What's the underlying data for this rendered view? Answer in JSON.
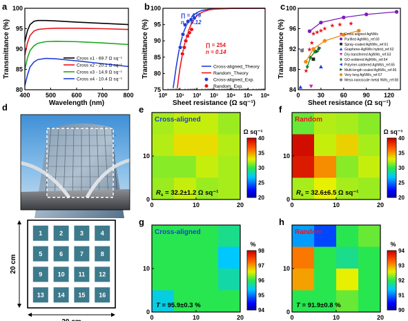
{
  "panel_letters": [
    "a",
    "b",
    "c",
    "d",
    "e",
    "f",
    "g",
    "h"
  ],
  "chart_data": [
    {
      "id": "a",
      "type": "line",
      "xlabel": "Wavelength (nm)",
      "ylabel": "Transmittance (%)",
      "xlim": [
        400,
        800
      ],
      "ylim": [
        80,
        100
      ],
      "xticks": [
        400,
        500,
        600,
        700,
        800
      ],
      "yticks": [
        80,
        85,
        90,
        95,
        100
      ],
      "legend_position": "lower-right",
      "series": [
        {
          "name": "Cross x1 - 69.7 Ω sq⁻¹",
          "color": "#000000",
          "x": [
            400,
            410,
            420,
            435,
            450,
            480,
            520,
            600,
            700,
            800
          ],
          "y": [
            91.8,
            94.5,
            96.0,
            96.8,
            97.0,
            97.0,
            96.9,
            96.6,
            96.3,
            96.0
          ]
        },
        {
          "name": "Cross x2 - 20.1 Ω sq⁻¹",
          "color": "#e8141b",
          "x": [
            400,
            410,
            420,
            435,
            450,
            480,
            520,
            600,
            700,
            800
          ],
          "y": [
            88.5,
            91.5,
            93.3,
            94.4,
            94.8,
            95.0,
            95.1,
            95.1,
            95.0,
            94.8
          ]
        },
        {
          "name": "Cross x3 - 14.9 Ω sq⁻¹",
          "color": "#1aa81a",
          "x": [
            400,
            410,
            420,
            435,
            450,
            480,
            520,
            600,
            700,
            800
          ],
          "y": [
            85.0,
            87.8,
            89.6,
            90.8,
            91.4,
            91.8,
            91.9,
            91.8,
            91.5,
            91.1
          ]
        },
        {
          "name": "Cross x4 - 10.4 Ω sq⁻¹",
          "color": "#1f3fd6",
          "x": [
            400,
            410,
            420,
            435,
            450,
            480,
            520,
            600,
            700,
            800
          ],
          "y": [
            81.0,
            83.6,
            85.6,
            86.8,
            87.4,
            87.7,
            87.6,
            87.1,
            86.4,
            85.7
          ]
        }
      ]
    },
    {
      "id": "b",
      "type": "scatter",
      "xlabel": "Sheet resistance (Ω sq⁻¹)",
      "ylabel": "Transmittance (%)",
      "xscale": "log",
      "xlim": [
        1,
        1000000
      ],
      "ylim": [
        75,
        100
      ],
      "xticks": [
        1,
        10,
        100,
        1000,
        10000,
        100000,
        1000000
      ],
      "xtick_labels": [
        "10⁰",
        "10¹",
        "10²",
        "10³",
        "10⁴",
        "10⁵",
        "10⁶"
      ],
      "yticks": [
        75,
        80,
        85,
        90,
        95,
        100
      ],
      "legend_position": "lower-right",
      "series": [
        {
          "name": "Cross-aligned_Theory",
          "kind": "line",
          "color": "#1f3fd6",
          "x": [
            4,
            5,
            6,
            8,
            10,
            15,
            20,
            30,
            50,
            100,
            200,
            500,
            1000,
            10000,
            1000000
          ],
          "y": [
            75.5,
            79.0,
            82.0,
            85.9,
            88.5,
            92.1,
            93.8,
            95.7,
            97.4,
            98.7,
            99.35,
            99.7,
            99.85,
            99.98,
            100
          ]
        },
        {
          "name": "Random_Theory",
          "kind": "line",
          "color": "#e8141b",
          "x": [
            7,
            8,
            10,
            15,
            20,
            30,
            50,
            100,
            200,
            500,
            1000,
            10000,
            1000000
          ],
          "y": [
            75.5,
            78.0,
            81.6,
            86.8,
            89.6,
            92.8,
            95.6,
            97.7,
            98.8,
            99.5,
            99.75,
            99.97,
            100
          ]
        },
        {
          "name": "Cross-aligned_Exp.",
          "kind": "point",
          "color": "#1f3fd6",
          "x": [
            10.4,
            14.9,
            20.1,
            30,
            45,
            69.7
          ],
          "y": [
            88.0,
            92.0,
            94.9,
            96.0,
            96.5,
            97.0
          ]
        },
        {
          "name": "Random_Exp.",
          "kind": "point",
          "color": "#e8141b",
          "x": [
            14,
            18,
            22,
            28,
            36,
            48
          ],
          "y": [
            86.0,
            88.0,
            90.0,
            91.5,
            92.5,
            93.5
          ]
        }
      ],
      "annotations": [
        {
          "text": "∏ = 479",
          "color": "#1f3fd6"
        },
        {
          "text": "n = 0.12",
          "color": "#1f3fd6"
        },
        {
          "text": "∏ = 254",
          "color": "#e8141b"
        },
        {
          "text": "n = 0.14",
          "color": "#e8141b"
        }
      ]
    },
    {
      "id": "c",
      "type": "scatter",
      "xlabel": "Sheet resistance (Ω sq⁻¹)",
      "ylabel": "Transmittance (%)",
      "xlim": [
        0,
        135
      ],
      "ylim": [
        84,
        100
      ],
      "xticks": [
        0,
        30,
        60,
        90,
        120
      ],
      "yticks": [
        84,
        88,
        92,
        96,
        100
      ],
      "legend_position": "lower-right",
      "series": [
        {
          "name": "Cross-aligned AgNWs",
          "marker": "star",
          "color": "#e8141b",
          "x": [
            10.4,
            14.9,
            18,
            20.1,
            25,
            30,
            35,
            45,
            55,
            69.7
          ],
          "y": [
            87.7,
            91.9,
            93.2,
            95.0,
            95.3,
            95.6,
            96.0,
            96.6,
            96.8,
            97.0
          ]
        },
        {
          "name": "Purified AgNWs_ref.60",
          "marker": "circle",
          "line": true,
          "color": "#7a1fb8",
          "x": [
            15,
            30,
            60,
            90,
            130
          ],
          "y": [
            95.5,
            97.2,
            98.2,
            98.8,
            99.3
          ]
        },
        {
          "name": "Spray-coated AgNWs_ref.61",
          "marker": "square",
          "color": "#222222",
          "x": [
            20
          ],
          "y": [
            90.0
          ]
        },
        {
          "name": "Graphene-AgNWs hybrid_ref.62",
          "marker": "triangle",
          "color": "#1f3fd6",
          "x": [
            3,
            30
          ],
          "y": [
            84.5,
            88.5
          ]
        },
        {
          "name": "Dry-transferred AgNWs_ref.63",
          "marker": "triangle-down",
          "color": "#d61fb0",
          "x": [
            17
          ],
          "y": [
            84.7
          ]
        },
        {
          "name": "GO-soldered AgNWs_ref.64",
          "marker": "diamond",
          "line": true,
          "color": "#1a8a1a",
          "x": [
            12,
            16,
            22,
            27
          ],
          "y": [
            88.5,
            90.3,
            91.5,
            92.0
          ]
        },
        {
          "name": "Polymer-soldered AgNWs_ref.65",
          "marker": "triangle-left",
          "color": "#1f3fd6",
          "x": [
            5
          ],
          "y": [
            91.8
          ]
        },
        {
          "name": "Multi-length scaled AgNWs_ref.66",
          "marker": "triangle-right",
          "color": "#1a5a3a",
          "x": [
            25,
            28
          ],
          "y": [
            91.5,
            92.2
          ]
        },
        {
          "name": "Very long AgNWs_ref.67",
          "marker": "hexagon",
          "line": true,
          "color": "#f08a12",
          "x": [
            10,
            20,
            35,
            60,
            80
          ],
          "y": [
            89.5,
            92.0,
            93.6,
            94.8,
            95.6
          ]
        },
        {
          "name": "Meso-nanoscale metal NWs_ref.68",
          "marker": "circle",
          "color": "#7a7a7a",
          "x": [
            5
          ],
          "y": [
            91.7
          ]
        }
      ]
    },
    {
      "id": "e",
      "type": "heatmap",
      "label": "Cross-aligned",
      "label_color": "#1f3fd6",
      "xlim": [
        0,
        20
      ],
      "ylim": [
        0,
        20
      ],
      "xticks": [
        0,
        10,
        20
      ],
      "yticks": [
        0,
        10
      ],
      "colorbar": {
        "unit": "Ω sq⁻¹",
        "min": 20,
        "max": 40,
        "ticks": [
          20,
          25,
          30,
          35,
          40
        ]
      },
      "grid_rows_top_to_bottom": [
        [
          32.0,
          32.5,
          32.5,
          31.8
        ],
        [
          32.2,
          33.5,
          33.5,
          32.2
        ],
        [
          31.5,
          31.5,
          32.5,
          32.0
        ],
        [
          31.8,
          32.5,
          31.8,
          32.0
        ]
      ],
      "caption": {
        "prefix": "R",
        "sub": "s",
        "text": " = 32.2±1.2 Ω sq⁻¹"
      }
    },
    {
      "id": "f",
      "type": "heatmap",
      "label": "Random",
      "label_color": "#e8141b",
      "xlim": [
        0,
        20
      ],
      "ylim": [
        0,
        20
      ],
      "xticks": [
        0,
        10,
        20
      ],
      "yticks": [
        0,
        10
      ],
      "colorbar": {
        "unit": "Ω sq⁻¹",
        "min": 20,
        "max": 40,
        "ticks": [
          20,
          25,
          30,
          35,
          40
        ]
      },
      "grid_rows_top_to_bottom": [
        [
          31.0,
          32.2,
          32.0,
          31.5
        ],
        [
          39.5,
          32.5,
          33.8,
          32.0
        ],
        [
          39.0,
          35.5,
          31.5,
          32.5
        ],
        [
          32.0,
          33.0,
          32.0,
          31.8
        ]
      ],
      "caption": {
        "prefix": "R",
        "sub": "s",
        "text": " = 32.6±6.5 Ω sq⁻¹"
      }
    },
    {
      "id": "g",
      "type": "heatmap",
      "label": "Cross-aligned",
      "label_color": "#1f3fd6",
      "xlim": [
        0,
        20
      ],
      "ylim": [
        0,
        20
      ],
      "xticks": [
        0,
        10,
        20
      ],
      "yticks": [
        0,
        10
      ],
      "colorbar": {
        "unit": "%",
        "min": 94,
        "max": 98,
        "ticks": [
          94,
          95,
          96,
          97,
          98
        ]
      },
      "grid_rows_top_to_bottom": [
        [
          96.0,
          96.0,
          96.0,
          95.8
        ],
        [
          96.0,
          96.0,
          96.0,
          95.4
        ],
        [
          96.0,
          96.0,
          96.0,
          95.7
        ],
        [
          95.5,
          96.0,
          96.0,
          96.0
        ]
      ],
      "caption": {
        "prefix": "T",
        "sub": "",
        "text": " = 95.9±0.3 %"
      }
    },
    {
      "id": "h",
      "type": "heatmap",
      "label": "Random",
      "label_color": "#e8141b",
      "xlim": [
        0,
        20
      ],
      "ylim": [
        0,
        20
      ],
      "xticks": [
        0,
        10,
        20
      ],
      "yticks": [
        0,
        10
      ],
      "colorbar": {
        "unit": "%",
        "min": 90,
        "max": 94,
        "ticks": [
          90,
          91,
          92,
          93,
          94
        ]
      },
      "grid_rows_top_to_bottom": [
        [
          91.2,
          90.8,
          92.0,
          92.2
        ],
        [
          93.2,
          92.0,
          91.8,
          92.0
        ],
        [
          93.0,
          92.0,
          92.6,
          92.0
        ],
        [
          92.0,
          92.0,
          92.2,
          92.0
        ]
      ],
      "caption": {
        "prefix": "T",
        "sub": "",
        "text": " = 91.9±0.8 %"
      }
    }
  ],
  "panel_d": {
    "photo_alt": "Photo of a building viewed through a transparent patterned film",
    "grid_numbers": [
      "1",
      "2",
      "3",
      "4",
      "5",
      "6",
      "7",
      "8",
      "9",
      "10",
      "11",
      "12",
      "13",
      "14",
      "15",
      "16"
    ],
    "width_label": "20 cm",
    "height_label": "20 cm",
    "cell_color": "#3d7a8c"
  }
}
